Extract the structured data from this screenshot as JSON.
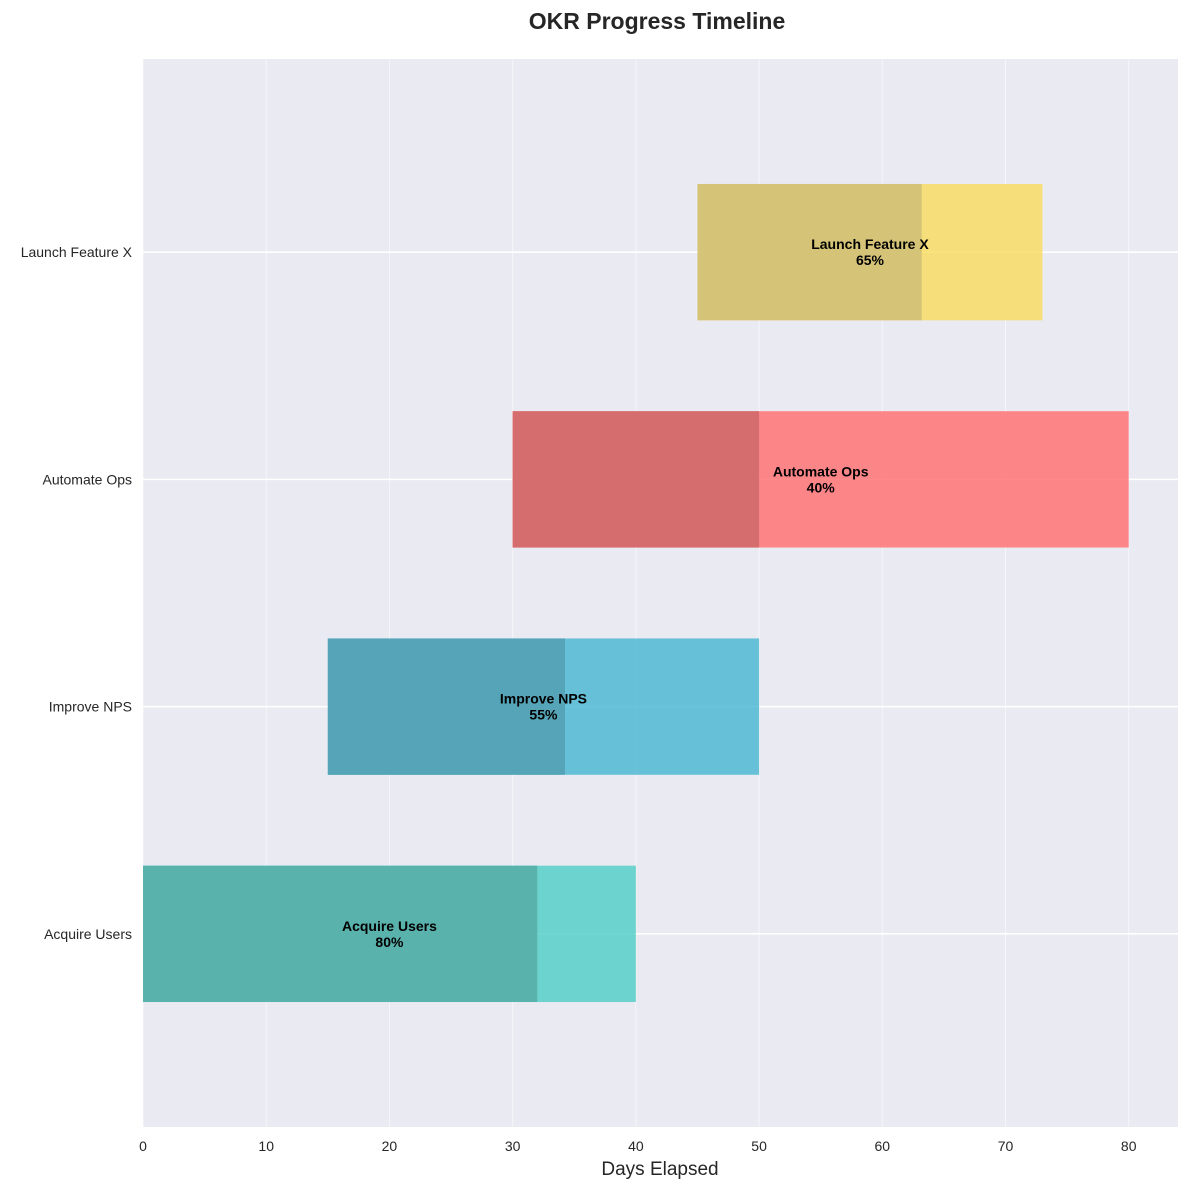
{
  "chart_data": {
    "type": "bar",
    "orientation": "horizontal",
    "title": "OKR Progress Timeline",
    "xlabel": "Days Elapsed",
    "ylabel": "",
    "xlim": [
      0,
      84
    ],
    "xticks": [
      0,
      10,
      20,
      30,
      40,
      50,
      60,
      70,
      80
    ],
    "grid": true,
    "categories": [
      "Acquire Users",
      "Improve NPS",
      "Automate Ops",
      "Launch Feature X"
    ],
    "bars": [
      {
        "name": "Acquire Users",
        "start": 0,
        "end": 40,
        "progress": 0.8,
        "progress_label": "80%",
        "color": "#4ECDC4",
        "progress_color": "#5AB2AD"
      },
      {
        "name": "Improve NPS",
        "start": 15,
        "end": 50,
        "progress": 0.55,
        "progress_label": "55%",
        "color": "#45B7D1",
        "progress_color": "#56A4B8"
      },
      {
        "name": "Automate Ops",
        "start": 30,
        "end": 80,
        "progress": 0.4,
        "progress_label": "40%",
        "color": "#FF6B6B",
        "progress_color": "#D56C6E"
      },
      {
        "name": "Launch Feature X",
        "start": 45,
        "end": 73,
        "progress": 0.65,
        "progress_label": "65%",
        "color": "#F9DC5C",
        "progress_color": "#D5C478"
      }
    ]
  }
}
